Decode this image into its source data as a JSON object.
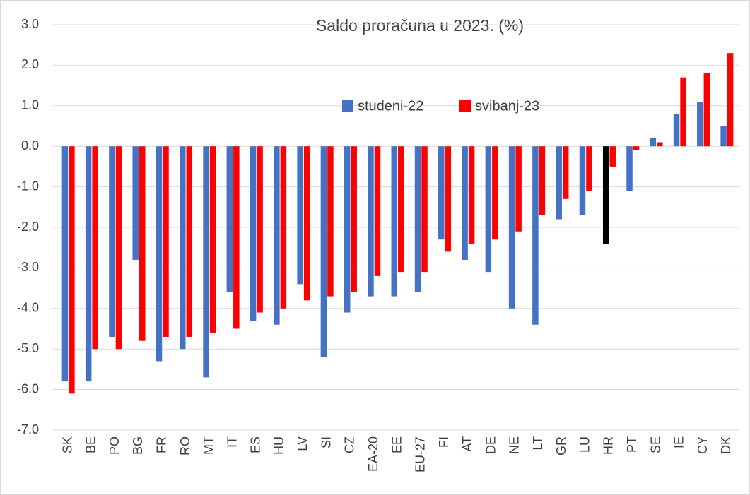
{
  "chart_data": {
    "type": "bar",
    "title": "Saldo proračuna u 2023. (%)",
    "categories": [
      "SK",
      "BE",
      "PO",
      "BG",
      "FR",
      "RO",
      "MT",
      "IT",
      "ES",
      "HU",
      "LV",
      "SI",
      "CZ",
      "EA-20",
      "EE",
      "EU-27",
      "FI",
      "AT",
      "DE",
      "NE",
      "LT",
      "GR",
      "LU",
      "HR",
      "PT",
      "SE",
      "IE",
      "CY",
      "DK"
    ],
    "series": [
      {
        "name": "studeni-22",
        "color": "#4472c4",
        "colors": [
          "#4472c4",
          "#4472c4",
          "#4472c4",
          "#4472c4",
          "#4472c4",
          "#4472c4",
          "#4472c4",
          "#4472c4",
          "#4472c4",
          "#4472c4",
          "#4472c4",
          "#4472c4",
          "#4472c4",
          "#4472c4",
          "#4472c4",
          "#4472c4",
          "#4472c4",
          "#4472c4",
          "#4472c4",
          "#4472c4",
          "#4472c4",
          "#4472c4",
          "#4472c4",
          "#000000",
          "#4472c4",
          "#4472c4",
          "#4472c4",
          "#4472c4",
          "#4472c4"
        ],
        "values": [
          -5.8,
          -5.8,
          -4.7,
          -2.8,
          -5.3,
          -5.0,
          -5.7,
          -3.6,
          -4.3,
          -4.4,
          -3.4,
          -5.2,
          -4.1,
          -3.7,
          -3.7,
          -3.6,
          -2.3,
          -2.8,
          -3.1,
          -4.0,
          -4.4,
          -1.8,
          -1.7,
          -2.4,
          -1.1,
          0.2,
          0.8,
          1.1,
          0.5
        ]
      },
      {
        "name": "svibanj-23",
        "color": "#ff0000",
        "values": [
          -6.1,
          -5.0,
          -5.0,
          -4.8,
          -4.7,
          -4.7,
          -4.6,
          -4.5,
          -4.1,
          -4.0,
          -3.8,
          -3.7,
          -3.6,
          -3.2,
          -3.1,
          -3.1,
          -2.6,
          -2.4,
          -2.3,
          -2.1,
          -1.7,
          -1.3,
          -1.1,
          -0.5,
          -0.1,
          0.1,
          1.7,
          1.8,
          2.3
        ]
      }
    ],
    "ylim": [
      -7,
      3
    ],
    "yticks": [
      {
        "value": 3,
        "label": "3.0"
      },
      {
        "value": 2,
        "label": "2.0"
      },
      {
        "value": 1,
        "label": "1.0"
      },
      {
        "value": 0,
        "label": "0.0"
      },
      {
        "value": -1,
        "label": "-1.0"
      },
      {
        "value": -2,
        "label": "-2.0"
      },
      {
        "value": -3,
        "label": "-3.0"
      },
      {
        "value": -4,
        "label": "-4.0"
      },
      {
        "value": -5,
        "label": "-5.0"
      },
      {
        "value": -6,
        "label": "-6.0"
      },
      {
        "value": -7,
        "label": "-7.0"
      }
    ],
    "grid": true,
    "legend": "top"
  }
}
